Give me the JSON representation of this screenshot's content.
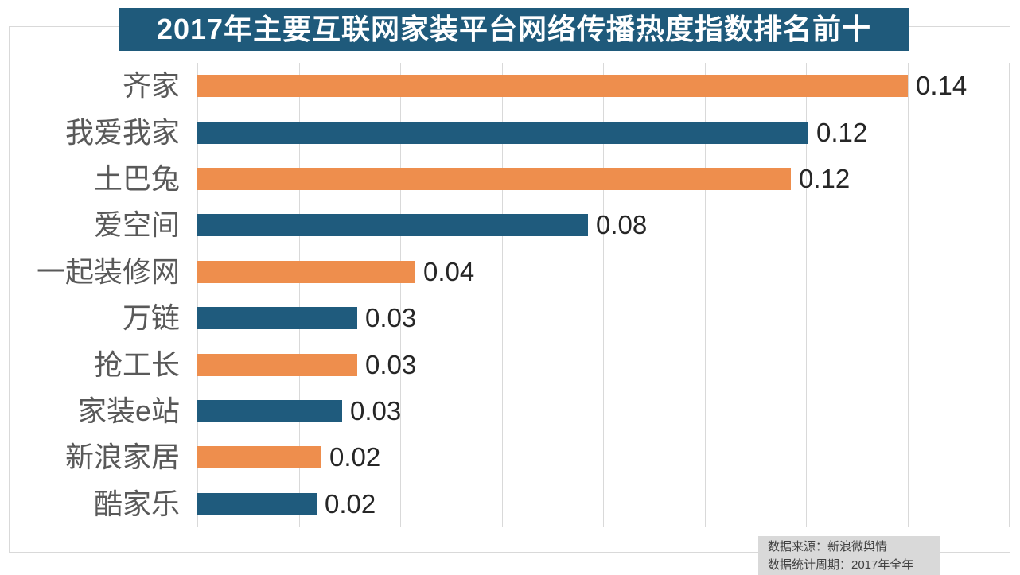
{
  "chart_data": {
    "type": "bar",
    "orientation": "horizontal",
    "title": "2017年主要互联网家装平台网络传播热度指数排名前十",
    "categories": [
      "齐家",
      "我爱我家",
      "土巴兔",
      "爱空间",
      "一起装修网",
      "万链",
      "抢工长",
      "家装e站",
      "新浪家居",
      "酷家乐"
    ],
    "values": [
      0.14,
      0.12,
      0.12,
      0.08,
      0.04,
      0.03,
      0.03,
      0.03,
      0.02,
      0.02
    ],
    "value_labels": [
      "0.14",
      "0.12",
      "0.12",
      "0.08",
      "0.04",
      "0.03",
      "0.03",
      "0.03",
      "0.02",
      "0.02"
    ],
    "bar_lengths_precise": [
      0.14,
      0.1205,
      0.117,
      0.077,
      0.043,
      0.0315,
      0.0315,
      0.0285,
      0.0245,
      0.0235
    ],
    "xlabel": "",
    "ylabel": "",
    "xlim": [
      0,
      0.16
    ],
    "gridline_interval": 0.02,
    "grid": "vertical-lines-only",
    "legend": "none",
    "colors": {
      "bar_odd": "#ee8e4d",
      "bar_even": "#1f5b7d",
      "title_bg": "#1f5a7b",
      "title_text": "#ffffff",
      "category_text": "#595959",
      "value_text": "#262626",
      "gridline": "#d9d9d9",
      "frame_border": "#d9d9d9",
      "source_bg": "#d9d9d9",
      "source_text": "#404040"
    }
  },
  "source_note": {
    "line1": "数据来源：新浪微舆情",
    "line2": "数据统计周期：2017年全年"
  }
}
